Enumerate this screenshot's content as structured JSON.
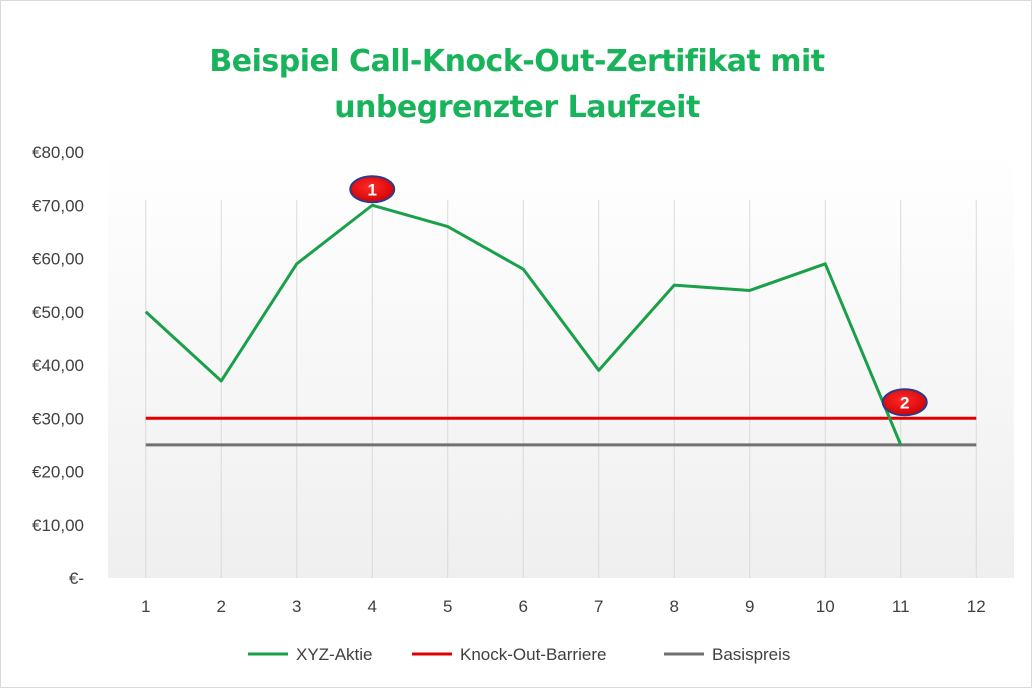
{
  "chart_data": {
    "type": "line",
    "title": "Beispiel Call-Knock-Out-Zertifikat mit unbegrenzter Laufzeit",
    "title_lines": [
      "Beispiel Call-Knock-Out-Zertifikat mit",
      "unbegrenzter Laufzeit"
    ],
    "categories": [
      "1",
      "2",
      "3",
      "4",
      "5",
      "6",
      "7",
      "8",
      "9",
      "10",
      "11",
      "12"
    ],
    "ylim": [
      0,
      80
    ],
    "y_ticks": [
      {
        "value": 80,
        "label": "€80,00"
      },
      {
        "value": 70,
        "label": "€70,00"
      },
      {
        "value": 60,
        "label": "€60,00"
      },
      {
        "value": 50,
        "label": "€50,00"
      },
      {
        "value": 40,
        "label": "€40,00"
      },
      {
        "value": 30,
        "label": "€30,00"
      },
      {
        "value": 20,
        "label": "€20,00"
      },
      {
        "value": 10,
        "label": "€10,00"
      },
      {
        "value": 0,
        "label": "€-"
      }
    ],
    "series": [
      {
        "name": "XYZ-Aktie",
        "color": "#19a049",
        "values": [
          50,
          37,
          59,
          70,
          66,
          58,
          39,
          55,
          54,
          59,
          25,
          null
        ]
      },
      {
        "name": "Knock-Out-Barriere",
        "color": "#e00000",
        "values": [
          30,
          30,
          30,
          30,
          30,
          30,
          30,
          30,
          30,
          30,
          30,
          30
        ]
      },
      {
        "name": "Basispreis",
        "color": "#707070",
        "values": [
          25,
          25,
          25,
          25,
          25,
          25,
          25,
          25,
          25,
          25,
          25,
          25
        ]
      }
    ],
    "annotations": [
      {
        "label": "1",
        "category": "4",
        "value": 70
      },
      {
        "label": "2",
        "category": "11",
        "value": 30
      }
    ],
    "grid": "vertical",
    "legend_position": "bottom"
  }
}
